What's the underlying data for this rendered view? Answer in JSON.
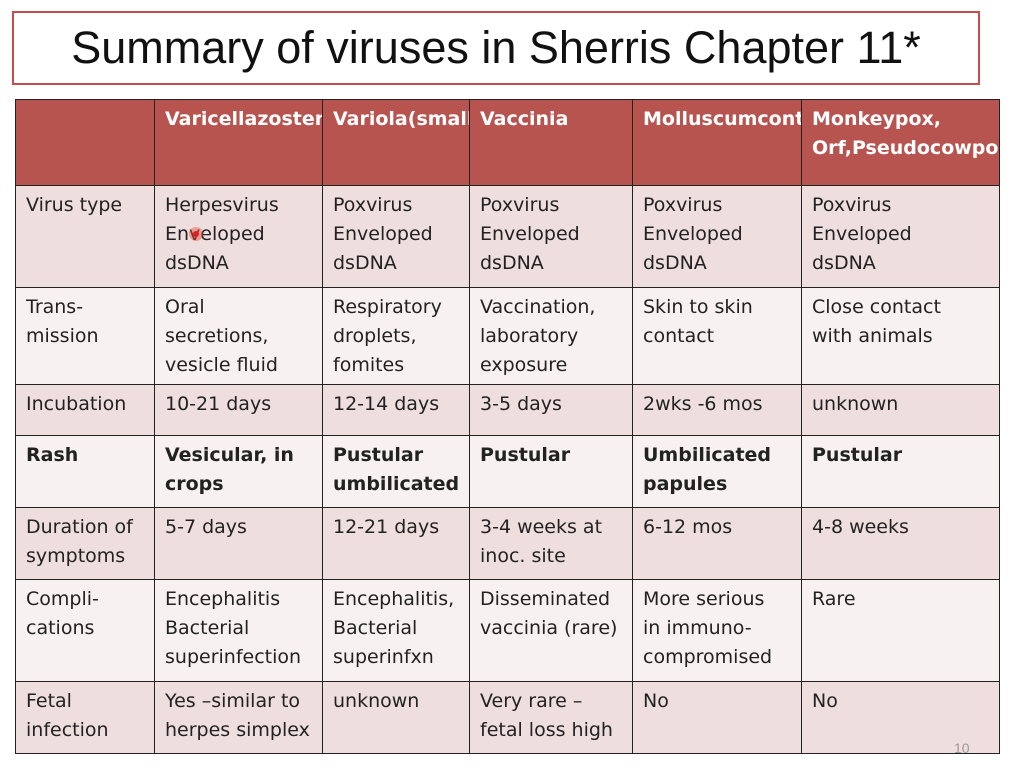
{
  "slide": {
    "title": "Summary of viruses in Sherris Chapter 11*",
    "page_number": "10"
  },
  "table": {
    "headers": [
      [
        ""
      ],
      [
        "Varicella",
        "zoster"
      ],
      [
        "Variola",
        "(smallpox)"
      ],
      [
        "Vaccinia"
      ],
      [
        "Molluscum",
        "contagiosum"
      ],
      [
        "Monkeypox, Orf,",
        "Pseudocowpox"
      ]
    ],
    "rows": [
      {
        "bold": false,
        "cells": [
          [
            "Virus type"
          ],
          [
            "Herpesvirus",
            "Enveloped",
            "dsDNA"
          ],
          [
            "Poxvirus",
            "Enveloped",
            "dsDNA"
          ],
          [
            "Poxvirus",
            "Enveloped",
            "dsDNA"
          ],
          [
            "Poxvirus",
            "Enveloped",
            "dsDNA"
          ],
          [
            "Poxvirus",
            "Enveloped",
            "dsDNA"
          ]
        ]
      },
      {
        "bold": false,
        "cells": [
          [
            "Trans-",
            "mission"
          ],
          [
            "Oral",
            "secretions,",
            "vesicle fluid"
          ],
          [
            "Respiratory",
            "droplets,",
            "fomites"
          ],
          [
            "Vaccination,",
            "laboratory",
            "exposure"
          ],
          [
            "Skin to skin",
            "contact"
          ],
          [
            "Close contact",
            "with animals"
          ]
        ]
      },
      {
        "bold": false,
        "cells": [
          [
            "Incubation"
          ],
          [
            "10-21 days"
          ],
          [
            "12-14 days"
          ],
          [
            "3-5 days"
          ],
          [
            "2wks -6 mos"
          ],
          [
            "unknown"
          ]
        ]
      },
      {
        "bold": true,
        "cells": [
          [
            "Rash"
          ],
          [
            "Vesicular, in",
            "crops"
          ],
          [
            "Pustular",
            "umbilicated"
          ],
          [
            "Pustular"
          ],
          [
            "Umbilicated",
            "papules"
          ],
          [
            "Pustular"
          ]
        ]
      },
      {
        "bold": false,
        "cells": [
          [
            "Duration of",
            "symptoms"
          ],
          [
            "5-7 days"
          ],
          [
            "12-21 days"
          ],
          [
            "3-4 weeks at",
            "inoc.  site"
          ],
          [
            "6-12 mos"
          ],
          [
            "4-8 weeks"
          ]
        ]
      },
      {
        "bold": false,
        "cells": [
          [
            "Compli-",
            "cations"
          ],
          [
            "Encephalitis",
            "Bacterial",
            "superinfection"
          ],
          [
            "Encephalitis,",
            "Bacterial",
            "superinfxn"
          ],
          [
            "Disseminated",
            "vaccinia (rare)"
          ],
          [
            "More serious",
            "in immuno-",
            "compromised"
          ],
          [
            "Rare"
          ]
        ]
      },
      {
        "bold": false,
        "cells": [
          [
            "Fetal",
            "infection"
          ],
          [
            "Yes –similar to",
            "herpes simplex"
          ],
          [
            "unknown"
          ],
          [
            "Very rare –",
            "fetal loss high"
          ],
          [
            "No"
          ],
          [
            "No"
          ]
        ]
      }
    ]
  },
  "colors": {
    "header_bg": "#b85450",
    "row_odd_bg": "#efdede",
    "row_even_bg": "#f8f1f1",
    "title_border": "#c0504d"
  }
}
